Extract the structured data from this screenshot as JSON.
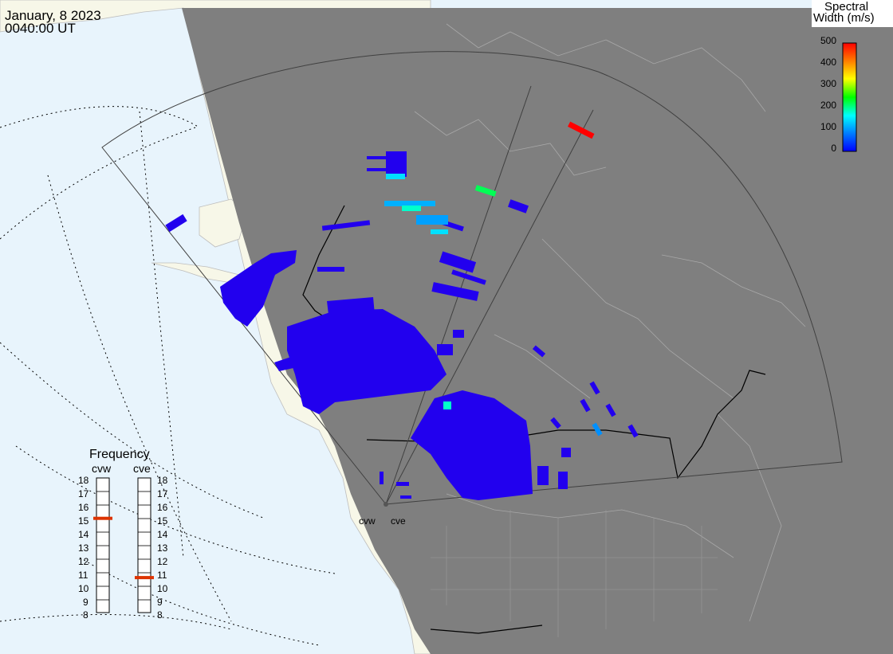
{
  "header": {
    "date": "January, 8 2023",
    "time": "0040:00 UT"
  },
  "colorbar": {
    "title_line1": "Spectral",
    "title_line2": "Width (m/s)",
    "ticks": [
      "500",
      "400",
      "300",
      "200",
      "100",
      "0"
    ],
    "range": [
      0,
      500
    ],
    "colors": [
      "#0000ff",
      "#0080ff",
      "#00ffff",
      "#00ff00",
      "#ffff00",
      "#ff8000",
      "#ff0000"
    ]
  },
  "frequency_panel": {
    "title": "Frequency",
    "left_label": "cvw",
    "right_label": "cve",
    "ticks": [
      "18",
      "17",
      "16",
      "15",
      "14",
      "13",
      "12",
      "11",
      "10",
      "9",
      "8"
    ],
    "cvw_freq_mhz": 15,
    "cve_freq_mhz": 10.6,
    "marker_color": "#dd3300"
  },
  "radar_sites": [
    {
      "id": "cvw",
      "label": "cvw"
    },
    {
      "id": "cve",
      "label": "cve"
    }
  ],
  "colors": {
    "ocean": "#e8f4fc",
    "land_day": "#f7f7e8",
    "night": "#7f7f7f",
    "scatter": "#2200ee",
    "boundary": "#000000"
  }
}
